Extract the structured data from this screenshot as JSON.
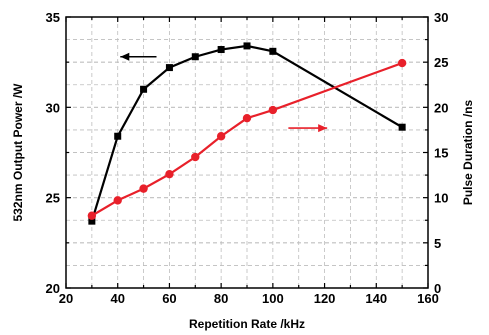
{
  "chart_data": {
    "type": "line",
    "xlabel": "Repetition Rate /kHz",
    "ylabel_left": "532nm Output Power /W",
    "ylabel_right": "Pulse Duration /ns",
    "xlim": [
      20,
      160
    ],
    "ylim_left": [
      20,
      35
    ],
    "ylim_right": [
      0,
      30
    ],
    "x_ticks": [
      "20",
      "40",
      "60",
      "80",
      "100",
      "120",
      "140",
      "160"
    ],
    "y_left_ticks": [
      "20",
      "25",
      "30",
      "35"
    ],
    "y_right_ticks": [
      "0",
      "5",
      "10",
      "15",
      "20",
      "25",
      "30"
    ],
    "grid": true,
    "series": [
      {
        "axis": "left",
        "color": "#000000",
        "marker": "square",
        "x": [
          30,
          40,
          50,
          60,
          70,
          80,
          90,
          100,
          150
        ],
        "values": [
          23.7,
          28.4,
          31.0,
          32.2,
          32.8,
          33.2,
          33.4,
          33.1,
          28.9
        ]
      },
      {
        "axis": "right",
        "color": "#e8202a",
        "marker": "circle",
        "x": [
          30,
          40,
          50,
          60,
          70,
          80,
          90,
          100,
          150
        ],
        "values": [
          8.0,
          9.7,
          11.0,
          12.6,
          14.5,
          16.8,
          18.8,
          19.7,
          24.9
        ]
      }
    ],
    "annotations": [
      {
        "type": "arrow",
        "direction": "left",
        "color": "#000000",
        "target_axis": "left"
      },
      {
        "type": "arrow",
        "direction": "right",
        "color": "#e8202a",
        "target_axis": "right"
      }
    ]
  }
}
